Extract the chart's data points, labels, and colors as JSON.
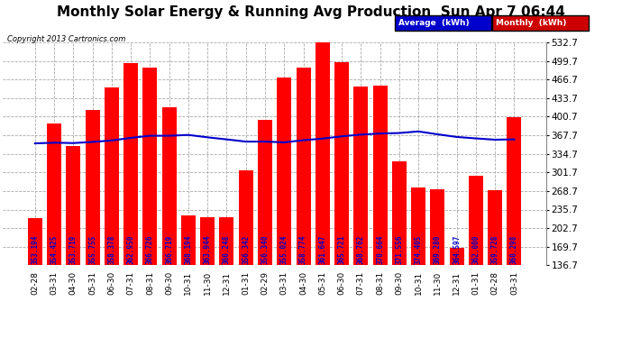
{
  "title": "Monthly Solar Energy & Running Avg Production  Sun Apr 7 06:44",
  "copyright": "Copyright 2013 Cartronics.com",
  "categories": [
    "02-28",
    "03-31",
    "04-30",
    "05-31",
    "06-30",
    "07-31",
    "08-31",
    "09-30",
    "10-31",
    "11-30",
    "12-31",
    "01-31",
    "02-29",
    "03-31",
    "04-30",
    "05-31",
    "06-30",
    "07-31",
    "08-31",
    "09-30",
    "10-31",
    "11-30",
    "12-31",
    "01-31",
    "02-28",
    "03-31"
  ],
  "monthly_values": [
    221.0,
    388.0,
    349.0,
    413.0,
    452.0,
    496.0,
    488.0,
    418.0,
    225.0,
    222.0,
    222.0,
    305.0,
    395.0,
    470.0,
    487.0,
    532.0,
    497.0,
    454.0,
    456.0,
    321.0,
    275.0,
    272.0,
    167.0,
    295.0,
    270.0,
    400.0
  ],
  "average_values": [
    353.194,
    354.425,
    353.719,
    355.755,
    358.378,
    362.95,
    366.726,
    366.719,
    368.194,
    363.944,
    360.248,
    356.342,
    356.34,
    355.024,
    358.774,
    361.647,
    365.721,
    368.762,
    370.664,
    371.556,
    374.405,
    369.28,
    364.597,
    362.0,
    359.728,
    360.298
  ],
  "bar_color": "#ff0000",
  "line_color": "#0000cc",
  "bg_color": "#ffffff",
  "plot_bg_color": "#ffffff",
  "title_color": "#000000",
  "copyright_color": "#000000",
  "ylabel_right": [
    "136.7",
    "169.7",
    "202.7",
    "235.7",
    "268.7",
    "301.7",
    "334.7",
    "367.7",
    "400.7",
    "433.7",
    "466.7",
    "499.7",
    "532.7"
  ],
  "ylim_min": 136.7,
  "ylim_max": 532.7,
  "legend_avg_label": "Average  (kWh)",
  "legend_monthly_label": "Monthly  (kWh)",
  "legend_avg_bg": "#0000cc",
  "legend_monthly_bg": "#cc0000",
  "grid_color": "#aaaaaa",
  "title_fontsize": 11,
  "bar_label_color": "#0000cc",
  "bar_label_fontsize": 5.5
}
